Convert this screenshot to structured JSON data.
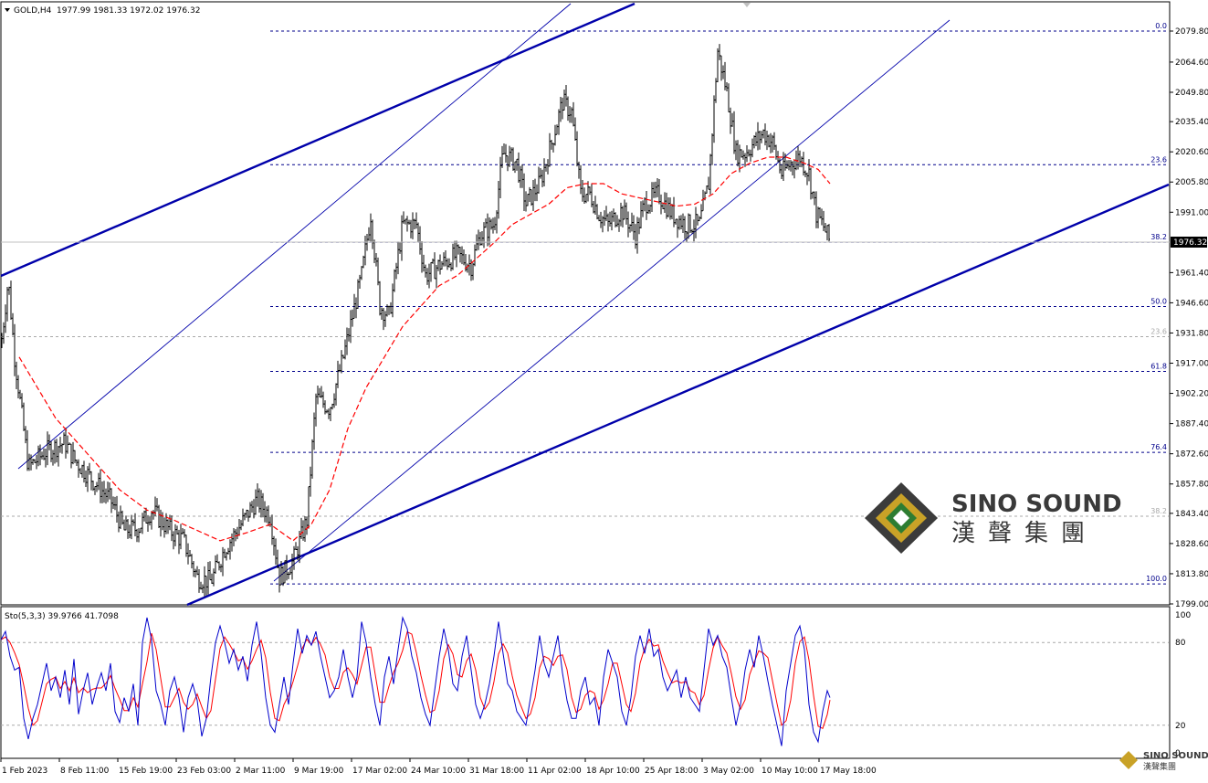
{
  "header": {
    "symbol": "GOLD,H4",
    "ohlc": "1977.99 1981.33 1972.02 1976.32"
  },
  "indicator": {
    "label": "Sto(5,3,3) 39.9766 41.7098",
    "levels": [
      "100",
      "80",
      "20",
      "0"
    ]
  },
  "watermark": {
    "brand_latin": "SINO SOUND",
    "brand_cjk": "漢聲集團",
    "small_latin": "SINO SOUND",
    "small_cjk": "漢聲集團"
  },
  "colors": {
    "background": "#ffffff",
    "bars": "#000000",
    "trendline": "#0000aa",
    "fib": "#00008b",
    "ma": "#ff0000",
    "stoch_main": "#0000cc",
    "stoch_signal": "#ff0000",
    "grid_gray": "#a9a9a9",
    "price_box": "#000000"
  },
  "chart_data": {
    "type": "line",
    "title": "GOLD,H4",
    "current_price": "1976.32",
    "ylim": [
      1799.0,
      2092.0
    ],
    "y_ticks": [
      "2079.80",
      "2064.60",
      "2049.80",
      "2035.40",
      "2020.60",
      "2005.80",
      "1991.00",
      "1976.32",
      "1961.40",
      "1946.60",
      "1931.80",
      "1917.00",
      "1902.20",
      "1887.40",
      "1872.60",
      "1857.80",
      "1843.40",
      "1828.60",
      "1813.80",
      "1799.00"
    ],
    "x_ticks": [
      "1 Feb 2023",
      "8 Feb 11:00",
      "15 Feb 19:00",
      "23 Feb 03:00",
      "2 Mar 11:00",
      "9 Mar 19:00",
      "17 Mar 02:00",
      "24 Mar 10:00",
      "31 Mar 18:00",
      "11 Apr 02:00",
      "18 Apr 10:00",
      "25 Apr 18:00",
      "3 May 02:00",
      "10 May 10:00",
      "17 May 18:00"
    ],
    "fibonacci": [
      {
        "label": "0.0",
        "value": 2079.8
      },
      {
        "label": "23.6",
        "value": 2014.3
      },
      {
        "label": "38.2",
        "value": 1976.3
      },
      {
        "label": "50.0",
        "value": 1944.8
      },
      {
        "label": "61.8",
        "value": 1913.0
      },
      {
        "label": "76.4",
        "value": 1873.3
      },
      {
        "label": "100.0",
        "value": 1808.8
      }
    ],
    "secondary_fib": [
      {
        "label": "23.6",
        "value": 1930.0
      },
      {
        "label": "38.2",
        "value": 1842.0
      }
    ],
    "series": [
      {
        "type": "price",
        "points": [
          [
            0,
            1925
          ],
          [
            8,
            1958
          ],
          [
            15,
            1920
          ],
          [
            30,
            1866
          ],
          [
            50,
            1874
          ],
          [
            70,
            1878
          ],
          [
            80,
            1870
          ],
          [
            100,
            1860
          ],
          [
            120,
            1850
          ],
          [
            135,
            1835
          ],
          [
            150,
            1836
          ],
          [
            165,
            1845
          ],
          [
            185,
            1835
          ],
          [
            200,
            1830
          ],
          [
            215,
            1812
          ],
          [
            230,
            1810
          ],
          [
            245,
            1826
          ],
          [
            260,
            1836
          ],
          [
            280,
            1850
          ],
          [
            295,
            1842
          ],
          [
            305,
            1812
          ],
          [
            320,
            1820
          ],
          [
            335,
            1840
          ],
          [
            345,
            1900
          ],
          [
            360,
            1895
          ],
          [
            375,
            1920
          ],
          [
            395,
            1960
          ],
          [
            405,
            1990
          ],
          [
            415,
            1945
          ],
          [
            425,
            1940
          ],
          [
            440,
            1985
          ],
          [
            455,
            1985
          ],
          [
            465,
            1960
          ],
          [
            480,
            1965
          ],
          [
            500,
            1970
          ],
          [
            515,
            1965
          ],
          [
            525,
            1980
          ],
          [
            540,
            1985
          ],
          [
            550,
            2020
          ],
          [
            565,
            2015
          ],
          [
            575,
            1995
          ],
          [
            590,
            2005
          ],
          [
            600,
            2020
          ],
          [
            615,
            2045
          ],
          [
            625,
            2040
          ],
          [
            635,
            2000
          ],
          [
            645,
            2000
          ],
          [
            655,
            1990
          ],
          [
            665,
            1985
          ],
          [
            680,
            1992
          ],
          [
            695,
            1980
          ],
          [
            705,
            1995
          ],
          [
            720,
            2000
          ],
          [
            735,
            1990
          ],
          [
            750,
            1985
          ],
          [
            765,
            1985
          ],
          [
            775,
            2005
          ],
          [
            785,
            2070
          ],
          [
            795,
            2050
          ],
          [
            805,
            2020
          ],
          [
            815,
            2020
          ],
          [
            825,
            2025
          ],
          [
            835,
            2030
          ],
          [
            845,
            2025
          ],
          [
            855,
            2010
          ],
          [
            865,
            2015
          ],
          [
            875,
            2018
          ],
          [
            885,
            2010
          ],
          [
            893,
            1990
          ],
          [
            900,
            1985
          ],
          [
            908,
            1976.32
          ]
        ]
      },
      {
        "type": "moving_average",
        "points": [
          [
            20,
            1920
          ],
          [
            40,
            1905
          ],
          [
            60,
            1890
          ],
          [
            80,
            1880
          ],
          [
            100,
            1870
          ],
          [
            130,
            1855
          ],
          [
            160,
            1845
          ],
          [
            190,
            1840
          ],
          [
            215,
            1835
          ],
          [
            240,
            1830
          ],
          [
            270,
            1834
          ],
          [
            295,
            1838
          ],
          [
            320,
            1830
          ],
          [
            340,
            1838
          ],
          [
            360,
            1855
          ],
          [
            380,
            1885
          ],
          [
            400,
            1905
          ],
          [
            420,
            1920
          ],
          [
            440,
            1935
          ],
          [
            460,
            1945
          ],
          [
            480,
            1955
          ],
          [
            500,
            1960
          ],
          [
            520,
            1968
          ],
          [
            540,
            1976
          ],
          [
            560,
            1985
          ],
          [
            580,
            1990
          ],
          [
            600,
            1995
          ],
          [
            620,
            2003
          ],
          [
            640,
            2005
          ],
          [
            660,
            2005
          ],
          [
            680,
            2000
          ],
          [
            700,
            1998
          ],
          [
            720,
            1996
          ],
          [
            740,
            1994
          ],
          [
            760,
            1995
          ],
          [
            780,
            2000
          ],
          [
            800,
            2010
          ],
          [
            820,
            2015
          ],
          [
            840,
            2018
          ],
          [
            860,
            2018
          ],
          [
            880,
            2015
          ],
          [
            895,
            2012
          ],
          [
            908,
            2005
          ]
        ]
      }
    ],
    "stochastic": {
      "main": [
        [
          0,
          82
        ],
        [
          5,
          88
        ],
        [
          10,
          70
        ],
        [
          15,
          60
        ],
        [
          20,
          62
        ],
        [
          25,
          25
        ],
        [
          30,
          10
        ],
        [
          35,
          25
        ],
        [
          40,
          35
        ],
        [
          45,
          50
        ],
        [
          50,
          65
        ],
        [
          55,
          45
        ],
        [
          60,
          55
        ],
        [
          65,
          40
        ],
        [
          70,
          60
        ],
        [
          75,
          35
        ],
        [
          80,
          68
        ],
        [
          85,
          28
        ],
        [
          90,
          45
        ],
        [
          95,
          58
        ],
        [
          100,
          35
        ],
        [
          105,
          48
        ],
        [
          110,
          58
        ],
        [
          115,
          45
        ],
        [
          120,
          65
        ],
        [
          125,
          30
        ],
        [
          130,
          22
        ],
        [
          135,
          40
        ],
        [
          140,
          30
        ],
        [
          145,
          50
        ],
        [
          150,
          20
        ],
        [
          155,
          80
        ],
        [
          160,
          98
        ],
        [
          165,
          82
        ],
        [
          170,
          45
        ],
        [
          175,
          35
        ],
        [
          180,
          20
        ],
        [
          185,
          45
        ],
        [
          190,
          55
        ],
        [
          195,
          40
        ],
        [
          200,
          15
        ],
        [
          205,
          40
        ],
        [
          210,
          50
        ],
        [
          215,
          38
        ],
        [
          220,
          12
        ],
        [
          225,
          25
        ],
        [
          230,
          55
        ],
        [
          235,
          80
        ],
        [
          240,
          92
        ],
        [
          245,
          80
        ],
        [
          250,
          65
        ],
        [
          255,
          75
        ],
        [
          260,
          60
        ],
        [
          265,
          70
        ],
        [
          270,
          52
        ],
        [
          275,
          78
        ],
        [
          280,
          95
        ],
        [
          285,
          72
        ],
        [
          290,
          40
        ],
        [
          295,
          20
        ],
        [
          300,
          15
        ],
        [
          305,
          35
        ],
        [
          310,
          55
        ],
        [
          315,
          35
        ],
        [
          320,
          65
        ],
        [
          325,
          90
        ],
        [
          330,
          72
        ],
        [
          335,
          85
        ],
        [
          340,
          78
        ],
        [
          345,
          88
        ],
        [
          350,
          70
        ],
        [
          355,
          55
        ],
        [
          360,
          40
        ],
        [
          365,
          45
        ],
        [
          370,
          55
        ],
        [
          375,
          75
        ],
        [
          380,
          55
        ],
        [
          385,
          40
        ],
        [
          390,
          55
        ],
        [
          395,
          95
        ],
        [
          400,
          80
        ],
        [
          405,
          55
        ],
        [
          410,
          35
        ],
        [
          415,
          20
        ],
        [
          420,
          55
        ],
        [
          425,
          70
        ],
        [
          430,
          50
        ],
        [
          435,
          75
        ],
        [
          440,
          98
        ],
        [
          445,
          90
        ],
        [
          450,
          70
        ],
        [
          455,
          58
        ],
        [
          460,
          40
        ],
        [
          465,
          28
        ],
        [
          470,
          20
        ],
        [
          475,
          45
        ],
        [
          480,
          70
        ],
        [
          485,
          90
        ],
        [
          490,
          75
        ],
        [
          495,
          50
        ],
        [
          500,
          45
        ],
        [
          505,
          70
        ],
        [
          510,
          85
        ],
        [
          515,
          60
        ],
        [
          520,
          35
        ],
        [
          525,
          25
        ],
        [
          530,
          35
        ],
        [
          535,
          50
        ],
        [
          540,
          70
        ],
        [
          545,
          95
        ],
        [
          550,
          72
        ],
        [
          555,
          50
        ],
        [
          560,
          45
        ],
        [
          565,
          30
        ],
        [
          570,
          25
        ],
        [
          575,
          20
        ],
        [
          580,
          40
        ],
        [
          585,
          60
        ],
        [
          590,
          85
        ],
        [
          595,
          65
        ],
        [
          600,
          55
        ],
        [
          605,
          70
        ],
        [
          610,
          85
        ],
        [
          615,
          58
        ],
        [
          620,
          38
        ],
        [
          625,
          25
        ],
        [
          630,
          25
        ],
        [
          635,
          45
        ],
        [
          640,
          55
        ],
        [
          645,
          35
        ],
        [
          650,
          40
        ],
        [
          655,
          20
        ],
        [
          660,
          55
        ],
        [
          665,
          75
        ],
        [
          670,
          65
        ],
        [
          675,
          55
        ],
        [
          680,
          30
        ],
        [
          685,
          20
        ],
        [
          690,
          40
        ],
        [
          695,
          70
        ],
        [
          700,
          85
        ],
        [
          705,
          72
        ],
        [
          710,
          90
        ],
        [
          715,
          70
        ],
        [
          720,
          75
        ],
        [
          725,
          55
        ],
        [
          730,
          45
        ],
        [
          735,
          52
        ],
        [
          740,
          60
        ],
        [
          745,
          40
        ],
        [
          750,
          55
        ],
        [
          755,
          40
        ],
        [
          760,
          35
        ],
        [
          765,
          30
        ],
        [
          770,
          60
        ],
        [
          775,
          90
        ],
        [
          780,
          78
        ],
        [
          785,
          85
        ],
        [
          790,
          70
        ],
        [
          795,
          62
        ],
        [
          800,
          40
        ],
        [
          805,
          20
        ],
        [
          810,
          35
        ],
        [
          815,
          60
        ],
        [
          820,
          75
        ],
        [
          825,
          62
        ],
        [
          830,
          85
        ],
        [
          835,
          70
        ],
        [
          840,
          52
        ],
        [
          845,
          35
        ],
        [
          850,
          20
        ],
        [
          855,
          5
        ],
        [
          860,
          45
        ],
        [
          865,
          65
        ],
        [
          870,
          85
        ],
        [
          875,
          92
        ],
        [
          880,
          75
        ],
        [
          885,
          35
        ],
        [
          890,
          15
        ],
        [
          895,
          8
        ],
        [
          900,
          30
        ],
        [
          905,
          45
        ],
        [
          908,
          40
        ]
      ]
    }
  }
}
